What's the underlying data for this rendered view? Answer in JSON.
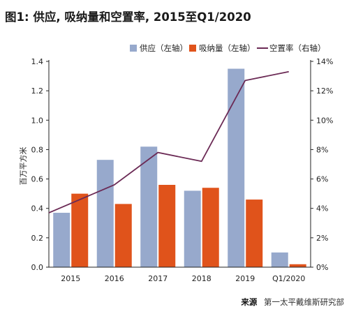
{
  "chart_data": {
    "type": "bar",
    "title": "图1: 供应, 吸纳量和空置率, 2015至Q1/2020",
    "categories": [
      "2015",
      "2016",
      "2017",
      "2018",
      "2019",
      "Q1/2020"
    ],
    "series": [
      {
        "name": "供应（左轴）",
        "kind": "bar",
        "axis": "left",
        "color": "#97a9cc",
        "values": [
          0.37,
          0.73,
          0.82,
          0.52,
          1.35,
          0.1
        ]
      },
      {
        "name": "吸纳量（左轴）",
        "kind": "bar",
        "axis": "left",
        "color": "#e0531b",
        "values": [
          0.5,
          0.43,
          0.56,
          0.54,
          0.46,
          0.02
        ]
      },
      {
        "name": "空置率（右轴）",
        "kind": "line",
        "axis": "right",
        "color": "#6b2a55",
        "values": [
          3.7,
          5.6,
          7.8,
          7.2,
          12.7,
          13.3
        ]
      }
    ],
    "ylabel": "百万平方米",
    "ylim": [
      0,
      1.4
    ],
    "y2lim": [
      0,
      14
    ],
    "yticks": [
      "0.0",
      "0.2",
      "0.4",
      "0.6",
      "0.8",
      "1.0",
      "1.2",
      "1.4"
    ],
    "y2ticks": [
      "0%",
      "2%",
      "4%",
      "6%",
      "8%",
      "10%",
      "12%",
      "14%"
    ],
    "legend_position": "top-right",
    "grid": false
  },
  "source": {
    "label": "来源",
    "text": "第一太平戴维斯研究部"
  }
}
